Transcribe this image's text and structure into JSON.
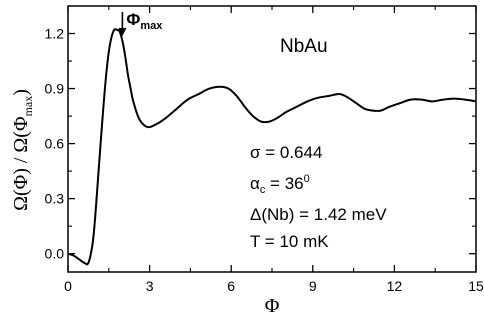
{
  "chart_data": {
    "type": "line",
    "xlabel": "Φ",
    "ylabel": "Ω(Φ) / Ω(Φ",
    "ylabel_sub": "max",
    "ylabel_close": ")",
    "xlim": [
      0,
      15
    ],
    "ylim": [
      -0.1,
      1.35
    ],
    "xticks": [
      0,
      3,
      6,
      9,
      12,
      15
    ],
    "xtick_labels": [
      "0",
      "3",
      "6",
      "9",
      "12",
      "15"
    ],
    "yticks": [
      0.0,
      0.3,
      0.6,
      0.9,
      1.2
    ],
    "ytick_labels": [
      "0.0",
      "0.3",
      "0.6",
      "0.9",
      "1.2"
    ],
    "grid": false,
    "series": [
      {
        "x": [
          0,
          0.2,
          0.4,
          0.6,
          0.75,
          0.9,
          1.0,
          1.1,
          1.2,
          1.3,
          1.4,
          1.5,
          1.6,
          1.7,
          1.8,
          1.9,
          2.0,
          2.1,
          2.2,
          2.3,
          2.4,
          2.6,
          2.8,
          3.0,
          3.3,
          3.6,
          4.0,
          4.4,
          4.8,
          5.2,
          5.6,
          5.9,
          6.2,
          6.5,
          6.8,
          7.1,
          7.4,
          7.7,
          8.0,
          8.4,
          8.8,
          9.2,
          9.6,
          10.0,
          10.3,
          10.6,
          10.9,
          11.2,
          11.5,
          11.8,
          12.2,
          12.6,
          13.0,
          13.4,
          13.8,
          14.2,
          14.6,
          15.0
        ],
        "y": [
          0.0,
          -0.01,
          -0.03,
          -0.05,
          -0.05,
          0.05,
          0.2,
          0.4,
          0.6,
          0.8,
          0.97,
          1.1,
          1.18,
          1.22,
          1.22,
          1.21,
          1.16,
          1.08,
          0.98,
          0.9,
          0.83,
          0.74,
          0.7,
          0.69,
          0.71,
          0.74,
          0.79,
          0.84,
          0.87,
          0.9,
          0.91,
          0.9,
          0.86,
          0.8,
          0.75,
          0.72,
          0.72,
          0.74,
          0.77,
          0.8,
          0.83,
          0.85,
          0.86,
          0.87,
          0.85,
          0.82,
          0.79,
          0.78,
          0.78,
          0.8,
          0.82,
          0.84,
          0.84,
          0.83,
          0.84,
          0.845,
          0.84,
          0.83
        ]
      }
    ],
    "marker_label": "Φ",
    "marker_label_sub": "max",
    "marker_x": 2.0,
    "material": "NbAu",
    "annotations": [
      "σ = 0.644",
      "α",
      "c",
      " = 36",
      "0",
      "Δ(Nb) = 1.42 meV",
      "T = 10 mK"
    ]
  }
}
